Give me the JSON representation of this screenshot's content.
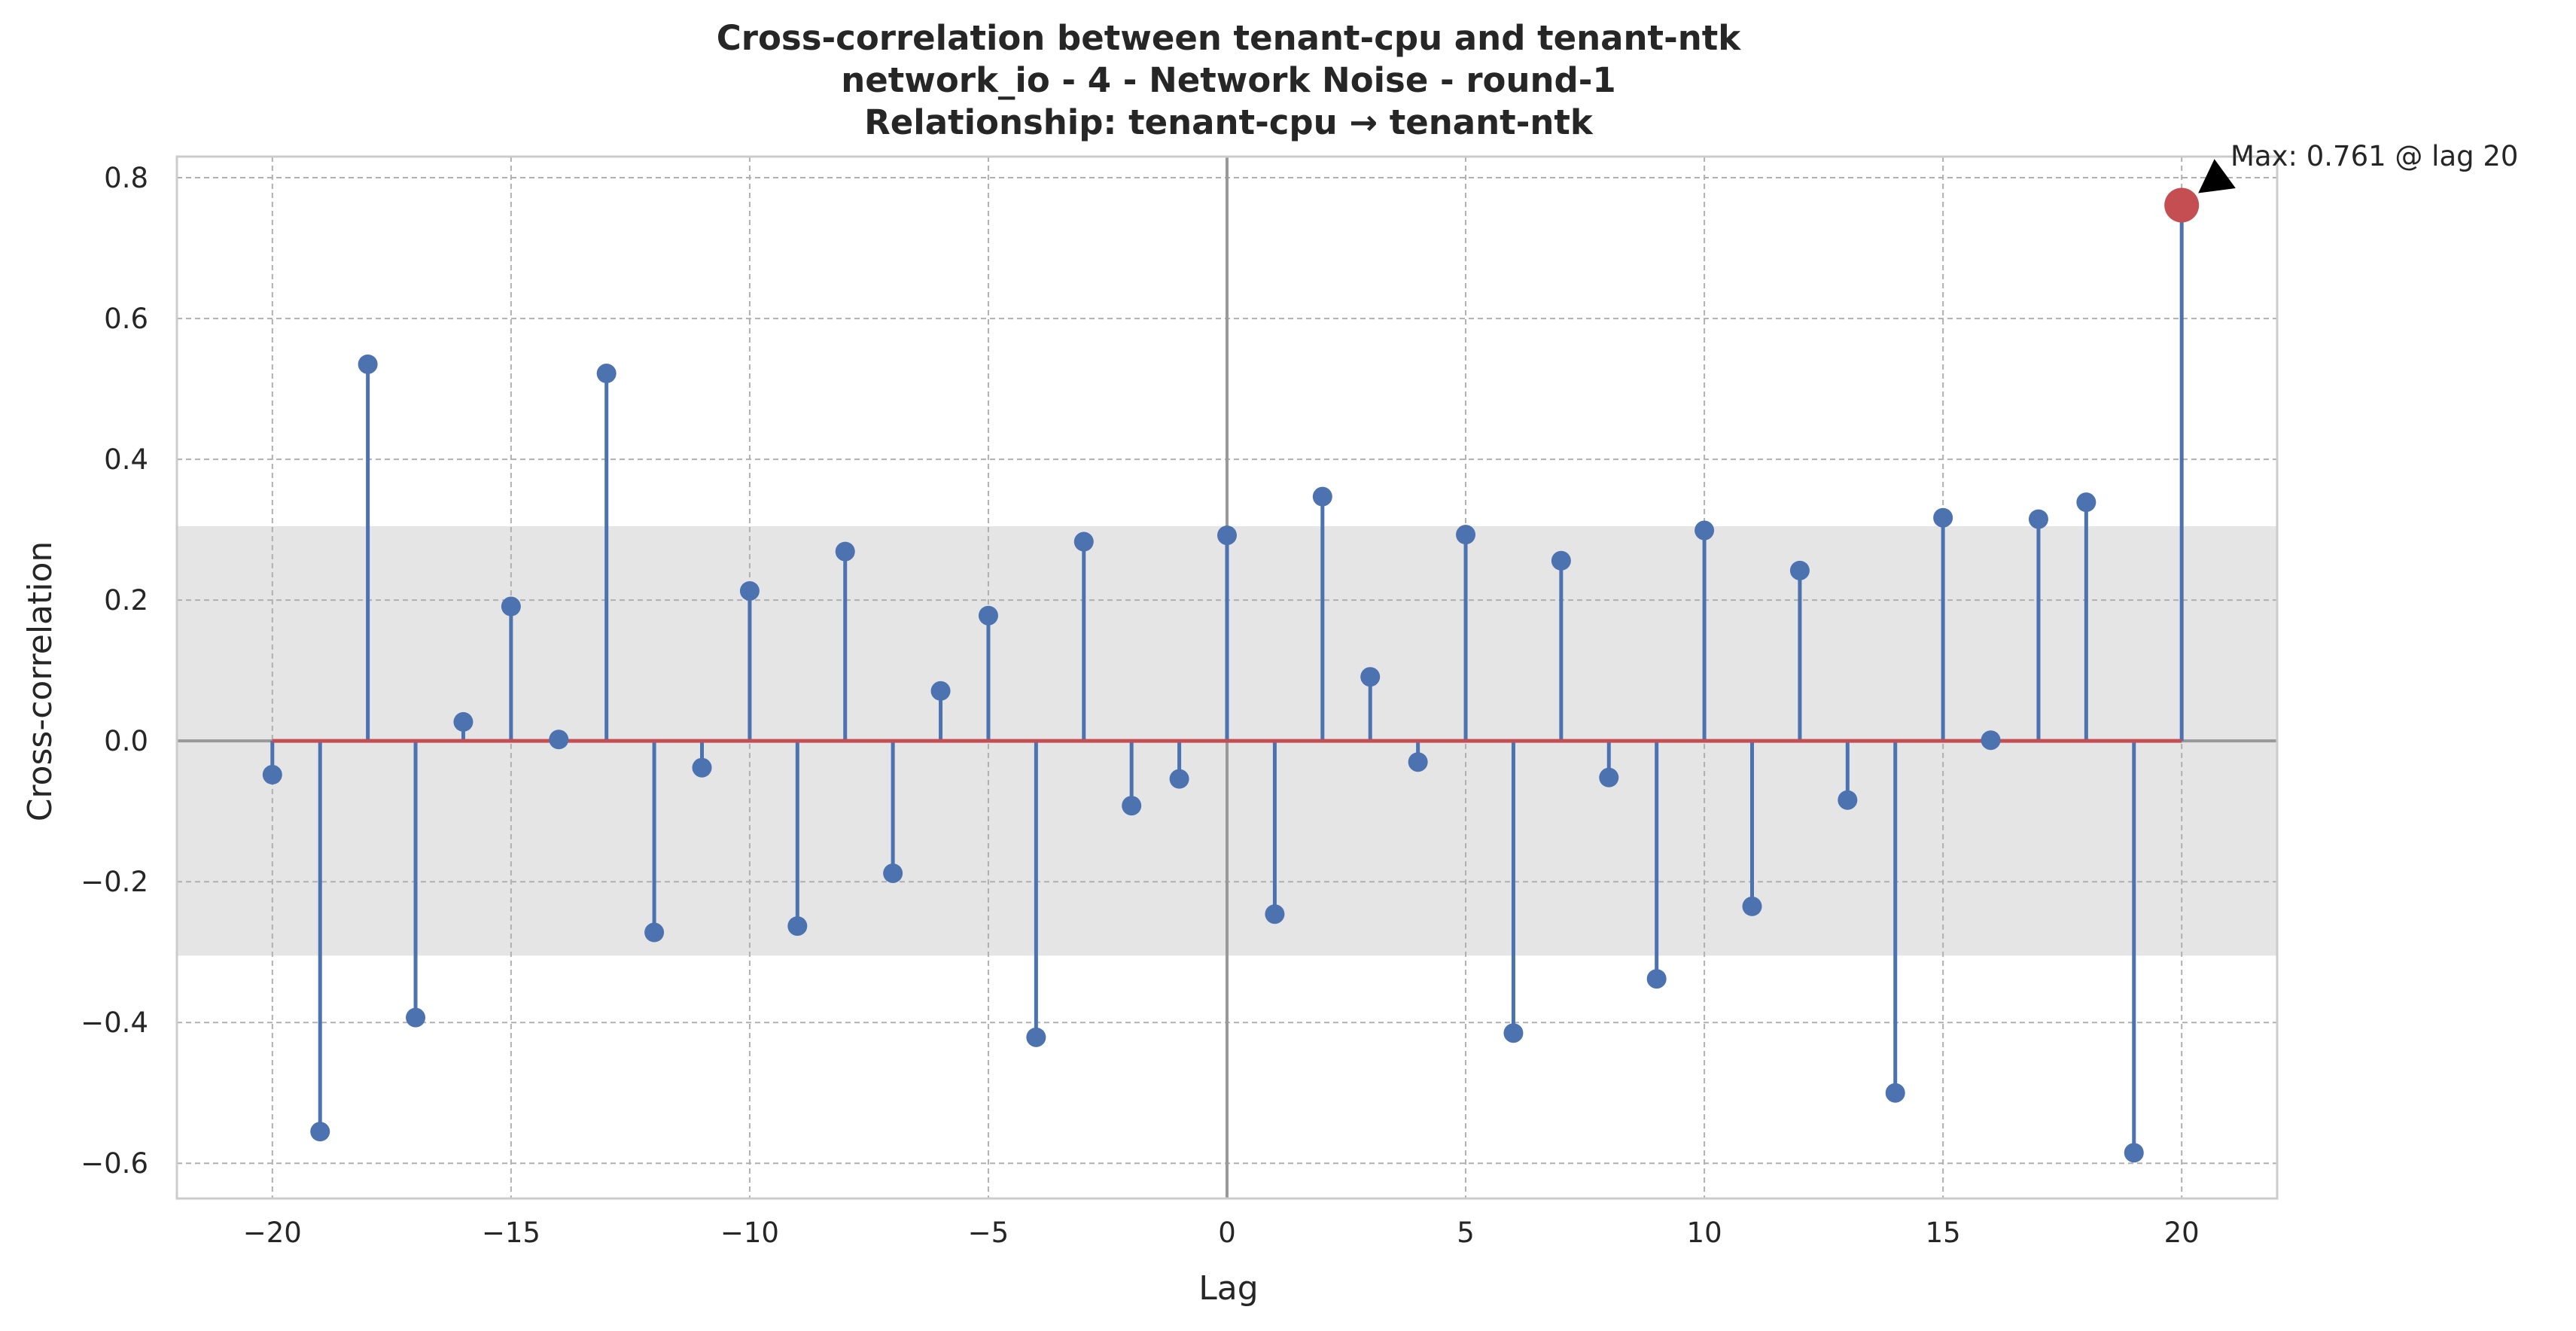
{
  "chart_data": {
    "type": "stem",
    "title_lines": [
      "Cross-correlation between tenant-cpu and tenant-ntk",
      "network_io - 4 - Network Noise - round-1",
      "Relationship: tenant-cpu → tenant-ntk"
    ],
    "xlabel": "Lag",
    "ylabel": "Cross-correlation",
    "xlim": [
      -22,
      22
    ],
    "ylim": [
      -0.65,
      0.83
    ],
    "xticks": [
      -20,
      -15,
      -10,
      -5,
      0,
      5,
      10,
      15,
      20
    ],
    "xtick_labels": [
      "−20",
      "−15",
      "−10",
      "−5",
      "0",
      "5",
      "10",
      "15",
      "20"
    ],
    "yticks": [
      -0.6,
      -0.4,
      -0.2,
      0.0,
      0.2,
      0.4,
      0.6,
      0.8
    ],
    "ytick_labels": [
      "−0.6",
      "−0.4",
      "−0.2",
      "0.0",
      "0.2",
      "0.4",
      "0.6",
      "0.8"
    ],
    "grid": true,
    "confidence_band": [
      -0.305,
      0.305
    ],
    "x": [
      -20,
      -19,
      -18,
      -17,
      -16,
      -15,
      -14,
      -13,
      -12,
      -11,
      -10,
      -9,
      -8,
      -7,
      -6,
      -5,
      -4,
      -3,
      -2,
      -1,
      0,
      1,
      2,
      3,
      4,
      5,
      6,
      7,
      8,
      9,
      10,
      11,
      12,
      13,
      14,
      15,
      16,
      17,
      18,
      19,
      20
    ],
    "y": [
      -0.048,
      -0.555,
      0.535,
      -0.393,
      0.027,
      0.191,
      0.002,
      0.522,
      -0.272,
      -0.038,
      0.213,
      -0.263,
      0.269,
      -0.188,
      0.071,
      0.178,
      -0.421,
      0.283,
      -0.092,
      -0.054,
      0.292,
      -0.246,
      0.347,
      0.091,
      -0.03,
      0.293,
      -0.415,
      0.256,
      -0.052,
      -0.338,
      0.299,
      -0.235,
      0.242,
      -0.084,
      -0.5,
      0.317,
      0.001,
      0.315,
      0.339,
      -0.585,
      0.761
    ],
    "max_point": {
      "lag": 20,
      "value": 0.761
    },
    "annotation": "Max: 0.761 @ lag 20",
    "colors": {
      "stem": "#4c72b0",
      "baseline": "#c44e52",
      "max_marker": "#c44e52",
      "band": "#e5e5e5",
      "zero_line": "#999999",
      "grid": "#b0b0b0",
      "frame": "#cccccc"
    }
  }
}
